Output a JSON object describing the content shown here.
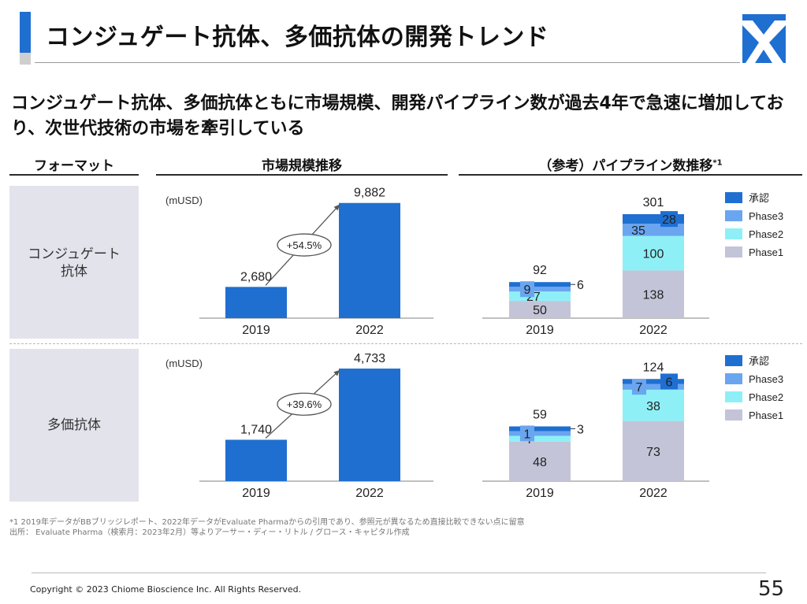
{
  "page": {
    "title": "コンジュゲート抗体、多価抗体の開発トレンド",
    "subtitle": "コンジュゲート抗体、多価抗体ともに市場規模、開発パイプライン数が過去4年で急速に増加しており、次世代技術の市場を牽引している",
    "footnote_1": "*1 2019年データがBBブリッジレポート、2022年データがEvaluate Pharmaからの引用であり、参照元が異なるため直接比較できない点に留意",
    "footnote_2": "出所： Evaluate Pharma（検索月：2023年2月）等よりアーサー・ディー・リトル / グロース・キャピタル作成",
    "copyright": "Copyright © 2023 Chiome Bioscience Inc. All Rights Reserved.",
    "page_number": "55"
  },
  "columns": {
    "format": "フォーマット",
    "market": "市場規模推移",
    "pipeline": "（参考）パイプライン数推移",
    "pipeline_note": "*1"
  },
  "rows": [
    {
      "label_lines": [
        "コンジュゲート",
        "抗体"
      ]
    },
    {
      "label_lines": [
        "多価抗体"
      ]
    }
  ],
  "colors": {
    "accent": "#1f6fd1",
    "market_bar": "#1f6fd1",
    "approved": "#1f6fd1",
    "phase3": "#6aa5f0",
    "phase2": "#8ef0f6",
    "phase1": "#c4c4d8"
  },
  "chart_data": [
    {
      "type": "bar",
      "title": "市場規模推移 - コンジュゲート抗体",
      "unit_label": "(mUSD)",
      "categories": [
        "2019",
        "2022"
      ],
      "values": [
        2680,
        9882
      ],
      "value_labels": [
        "2,680",
        "9,882"
      ],
      "growth_label": "+54.5%",
      "ylim": [
        0,
        10000
      ]
    },
    {
      "type": "bar",
      "title": "パイプライン数推移 - コンジュゲート抗体",
      "stacked": true,
      "categories": [
        "2019",
        "2022"
      ],
      "series": [
        {
          "name": "Phase1",
          "values": [
            50,
            138
          ]
        },
        {
          "name": "Phase2",
          "values": [
            27,
            100
          ]
        },
        {
          "name": "Phase3",
          "values": [
            9,
            35
          ]
        },
        {
          "name": "承認",
          "values": [
            6,
            28
          ]
        }
      ],
      "totals": [
        92,
        301
      ],
      "legend": [
        "承認",
        "Phase3",
        "Phase2",
        "Phase1"
      ],
      "ylim": [
        0,
        310
      ]
    },
    {
      "type": "bar",
      "title": "市場規模推移 - 多価抗体",
      "unit_label": "(mUSD)",
      "categories": [
        "2019",
        "2022"
      ],
      "values": [
        1740,
        4733
      ],
      "value_labels": [
        "1,740",
        "4,733"
      ],
      "growth_label": "+39.6%",
      "ylim": [
        0,
        4900
      ]
    },
    {
      "type": "bar",
      "title": "パイプライン数推移 - 多価抗体",
      "stacked": true,
      "categories": [
        "2019",
        "2022"
      ],
      "series": [
        {
          "name": "Phase1",
          "values": [
            48,
            73
          ]
        },
        {
          "name": "Phase2",
          "values": [
            7,
            38
          ]
        },
        {
          "name": "Phase3",
          "values": [
            1,
            7
          ]
        },
        {
          "name": "承認",
          "values": [
            3,
            6
          ]
        }
      ],
      "totals": [
        59,
        124
      ],
      "legend": [
        "承認",
        "Phase3",
        "Phase2",
        "Phase1"
      ],
      "ylim": [
        0,
        130
      ]
    }
  ]
}
